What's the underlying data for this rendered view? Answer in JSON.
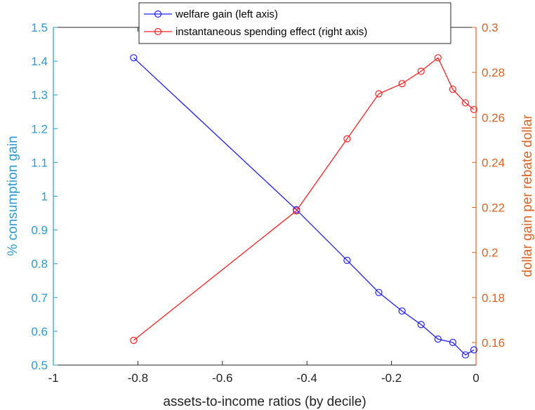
{
  "chart_data": {
    "type": "line",
    "xlabel": "assets-to-income ratios (by decile)",
    "ylabel_left": "% consumption gain",
    "ylabel_right": "dollar gain per rebate dollar",
    "xlim": [
      -1,
      0
    ],
    "ylim_left": [
      0.5,
      1.5
    ],
    "ylim_right": [
      0.15,
      0.3
    ],
    "x_ticks": [
      "-1",
      "-0.8",
      "-0.6",
      "-0.4",
      "-0.2",
      "0"
    ],
    "y_left_ticks": [
      "0.5",
      "0.6",
      "0.7",
      "0.8",
      "0.9",
      "1",
      "1.1",
      "1.2",
      "1.3",
      "1.4",
      "1.5"
    ],
    "y_right_ticks": [
      "0.16",
      "0.18",
      "0.2",
      "0.22",
      "0.24",
      "0.26",
      "0.28",
      "0.3"
    ],
    "grid": false,
    "legend_position": "top",
    "colors": {
      "left_axis": "#2b9ad6",
      "right_axis": "#e0621f",
      "series_blue": "#1f1fff",
      "series_red": "#ff1f1f"
    },
    "series": [
      {
        "name": "welfare gain (left axis)",
        "axis": "left",
        "color": "#1f1fff",
        "marker": "circle",
        "x": [
          -0.81,
          -0.425,
          -0.305,
          -0.23,
          -0.175,
          -0.13,
          -0.09,
          -0.055,
          -0.025,
          -0.005
        ],
        "y": [
          1.41,
          0.96,
          0.81,
          0.715,
          0.66,
          0.62,
          0.577,
          0.567,
          0.53,
          0.545
        ]
      },
      {
        "name": "instantaneous spending effect (right axis)",
        "axis": "right",
        "color": "#ff1f1f",
        "marker": "circle",
        "x": [
          -0.81,
          -0.425,
          -0.305,
          -0.23,
          -0.175,
          -0.13,
          -0.09,
          -0.055,
          -0.025,
          -0.005
        ],
        "y": [
          0.161,
          0.2185,
          0.2505,
          0.2705,
          0.275,
          0.2805,
          0.2865,
          0.2725,
          0.2665,
          0.2635
        ]
      }
    ]
  }
}
